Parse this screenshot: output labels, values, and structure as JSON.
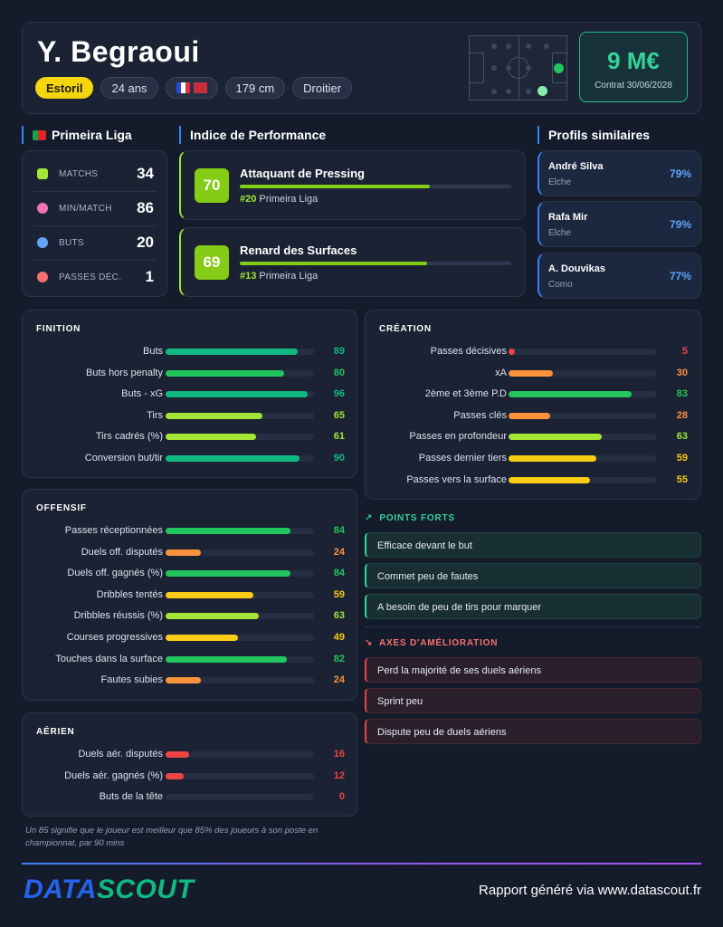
{
  "player": {
    "name": "Y. Begraoui",
    "club": "Estoril",
    "age": "24 ans",
    "height": "179 cm",
    "foot": "Droitier",
    "flags": [
      "France",
      "Morocco"
    ]
  },
  "market": {
    "value": "9 M€",
    "contract": "Contrat 30/06/2028"
  },
  "league": {
    "title": "Primeira Liga",
    "stats": [
      {
        "label": "MATCHS",
        "value": "34",
        "icon": "jersey-icon",
        "color": "#a3e635"
      },
      {
        "label": "MIN/MATCH",
        "value": "86",
        "icon": "clock-icon",
        "color": "#f472b6"
      },
      {
        "label": "BUTS",
        "value": "20",
        "icon": "ball-icon",
        "color": "#60a5fa"
      },
      {
        "label": "PASSES DÉC.",
        "value": "1",
        "icon": "target-icon",
        "color": "#f87171"
      }
    ]
  },
  "performance": {
    "title": "Indice de Performance",
    "items": [
      {
        "score": "70",
        "name": "Attaquant de Pressing",
        "rank": "#20",
        "league": "Primeira Liga",
        "fill": 0.7
      },
      {
        "score": "69",
        "name": "Renard des Surfaces",
        "rank": "#13",
        "league": "Primeira Liga",
        "fill": 0.69
      }
    ]
  },
  "similar": {
    "title": "Profils similaires",
    "items": [
      {
        "name": "André Silva",
        "club": "Elche",
        "pct": "79%"
      },
      {
        "name": "Rafa Mir",
        "club": "Elche",
        "pct": "79%"
      },
      {
        "name": "A. Douvikas",
        "club": "Como",
        "pct": "77%"
      }
    ]
  },
  "panels": {
    "finition": {
      "title": "FINITION",
      "metrics": [
        {
          "label": "Buts",
          "value": 89
        },
        {
          "label": "Buts hors penalty",
          "value": 80
        },
        {
          "label": "Buts - xG",
          "value": 96
        },
        {
          "label": "Tirs",
          "value": 65
        },
        {
          "label": "Tirs cadrés (%)",
          "value": 61
        },
        {
          "label": "Conversion but/tir",
          "value": 90
        }
      ]
    },
    "creation": {
      "title": "CRÉATION",
      "metrics": [
        {
          "label": "Passes décisives",
          "value": 5
        },
        {
          "label": "xA",
          "value": 30
        },
        {
          "label": "2ème et 3ème P.D",
          "value": 83
        },
        {
          "label": "Passes clés",
          "value": 28
        },
        {
          "label": "Passes en profondeur",
          "value": 63
        },
        {
          "label": "Passes dernier tiers",
          "value": 59
        },
        {
          "label": "Passes vers la surface",
          "value": 55
        }
      ]
    },
    "offensif": {
      "title": "OFFENSIF",
      "metrics": [
        {
          "label": "Passes réceptionnées",
          "value": 84
        },
        {
          "label": "Duels off. disputés",
          "value": 24
        },
        {
          "label": "Duels off. gagnés (%)",
          "value": 84
        },
        {
          "label": "Dribbles tentés",
          "value": 59
        },
        {
          "label": "Dribbles réussis (%)",
          "value": 63
        },
        {
          "label": "Courses progressives",
          "value": 49
        },
        {
          "label": "Touches dans la surface",
          "value": 82
        },
        {
          "label": "Fautes subies",
          "value": 24
        }
      ]
    },
    "aerien": {
      "title": "AÉRIEN",
      "metrics": [
        {
          "label": "Duels aér. disputés",
          "value": 16
        },
        {
          "label": "Duels aér. gagnés (%)",
          "value": 12
        },
        {
          "label": "Buts de la tête",
          "value": 0
        }
      ]
    }
  },
  "strengths": {
    "title": "POINTS FORTS",
    "items": [
      "Efficace devant le but",
      "Commet peu de fautes",
      "A besoin de peu de tirs pour marquer"
    ]
  },
  "weaknesses": {
    "title": "AXES D'AMÉLIORATION",
    "items": [
      "Perd la majorité de ses duels aériens",
      "Sprint peu",
      "Dispute peu de duels aériens"
    ]
  },
  "footnote": "Un 85 signifie que le joueur est meilleur que 85% des joueurs à son poste en championnat, par 90 mins",
  "footer": {
    "logo_a": "DATA",
    "logo_b": "SCOUT",
    "text": "Rapport généré via www.datascout.fr"
  },
  "colors": {
    "elite": "#10b981",
    "good": "#22c55e",
    "average": "#a3e635",
    "fair": "#facc15",
    "low": "#fb923c",
    "poor": "#ef4444"
  }
}
